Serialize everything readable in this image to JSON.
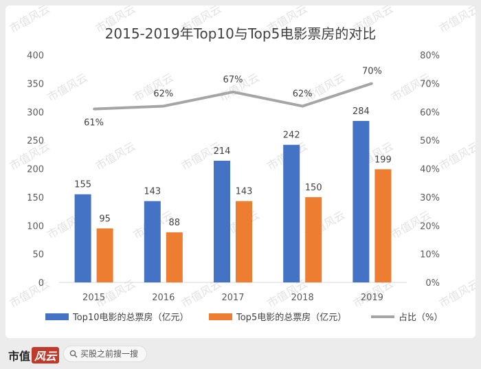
{
  "chart_data": {
    "type": "bar",
    "title": "2015-2019年Top10与Top5电影票房的对比",
    "categories": [
      "2015",
      "2016",
      "2017",
      "2018",
      "2019"
    ],
    "series": [
      {
        "name": "Top10电影的总票房（亿元）",
        "kind": "bar",
        "axis": "left",
        "color": "#4472c4",
        "values": [
          155,
          143,
          214,
          242,
          284
        ]
      },
      {
        "name": "Top5电影的总票房（亿元）",
        "kind": "bar",
        "axis": "left",
        "color": "#ed7d31",
        "values": [
          95,
          88,
          143,
          150,
          199
        ]
      },
      {
        "name": "占比（%）",
        "kind": "line",
        "axis": "right",
        "color": "#a5a5a5",
        "values": [
          61,
          62,
          67,
          62,
          70
        ],
        "labels": [
          "61%",
          "62%",
          "67%",
          "62%",
          "70%"
        ]
      }
    ],
    "y_left": {
      "min": 0,
      "max": 400,
      "ticks": [
        "0",
        "50",
        "100",
        "150",
        "200",
        "250",
        "300",
        "350",
        "400"
      ]
    },
    "y_right": {
      "min": 0,
      "max": 80,
      "ticks": [
        "0%",
        "10%",
        "20%",
        "30%",
        "40%",
        "50%",
        "60%",
        "70%",
        "80%"
      ]
    },
    "grid": false,
    "legend_position": "bottom"
  },
  "watermark": "市值风云",
  "footer": {
    "brand_text": "市值",
    "brand_logo_text": "风云",
    "search_placeholder": "买股之前搜一搜",
    "search_icon": "search-icon"
  }
}
